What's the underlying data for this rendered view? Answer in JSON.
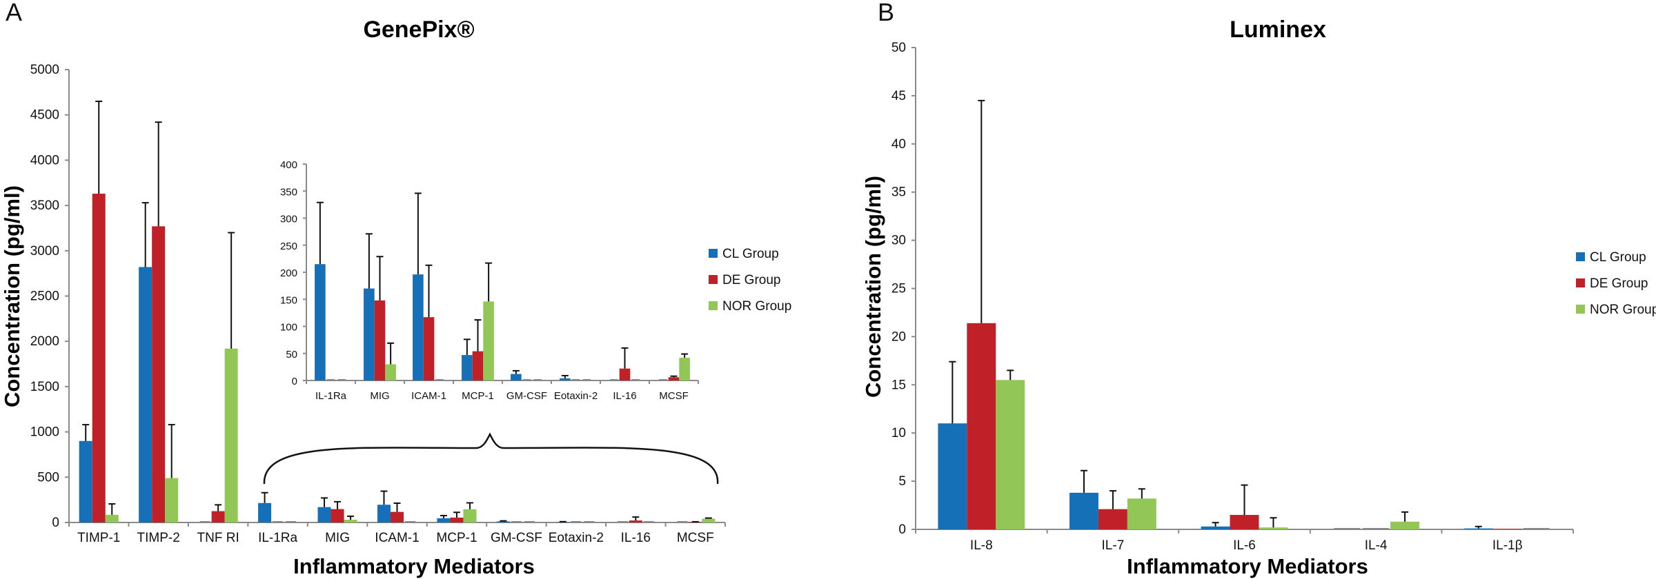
{
  "colors": {
    "CL": "#1670b8",
    "DE": "#c02129",
    "NOR": "#92c757"
  },
  "chart_data": [
    {
      "panel": "A",
      "type": "bar",
      "title": "GenePix®",
      "xlabel": "Inflammatory Mediators",
      "ylabel": "Concentration (pg/ml)",
      "ylim": [
        0,
        5000
      ],
      "yticks": [
        0,
        500,
        1000,
        1500,
        2000,
        2500,
        3000,
        3500,
        4000,
        4500,
        5000
      ],
      "legend_position": "right",
      "categories": [
        "TIMP-1",
        "TIMP-2",
        "TNF RI",
        "IL-1Ra",
        "MIG",
        "ICAM-1",
        "MCP-1",
        "GM-CSF",
        "Eotaxin-2",
        "IL-16",
        "MCSF"
      ],
      "series": [
        {
          "name": "CL Group",
          "key": "CL",
          "values": [
            900,
            2820,
            0,
            215,
            170,
            196,
            47,
            12,
            4,
            0,
            0
          ],
          "error_upper": [
            1080,
            3530,
            0,
            329,
            271,
            346,
            76,
            18,
            9,
            0,
            0
          ]
        },
        {
          "name": "DE Group",
          "key": "DE",
          "values": [
            3630,
            3270,
            125,
            0,
            148,
            117,
            54,
            0,
            0,
            22,
            6
          ],
          "error_upper": [
            4650,
            4420,
            195,
            0,
            229,
            213,
            112,
            0,
            0,
            60,
            8
          ]
        },
        {
          "name": "NOR Group",
          "key": "NOR",
          "values": [
            85,
            490,
            1920,
            0,
            30,
            0,
            146,
            0,
            0,
            0,
            42
          ],
          "error_upper": [
            205,
            1080,
            3200,
            0,
            69,
            0,
            217,
            0,
            0,
            0,
            49
          ]
        }
      ],
      "inset": {
        "type": "bar",
        "ylim": [
          0,
          400
        ],
        "yticks": [
          0,
          50,
          100,
          150,
          200,
          250,
          300,
          350,
          400
        ],
        "categories": [
          "IL-1Ra",
          "MIG",
          "ICAM-1",
          "MCP-1",
          "GM-CSF",
          "Eotaxin-2",
          "IL-16",
          "MCSF"
        ],
        "series": [
          {
            "name": "CL Group",
            "key": "CL",
            "values": [
              215,
              170,
              196,
              47,
              12,
              4,
              0,
              0
            ],
            "error_upper": [
              329,
              271,
              346,
              76,
              18,
              9,
              0,
              0
            ]
          },
          {
            "name": "DE Group",
            "key": "DE",
            "values": [
              0,
              148,
              117,
              54,
              0,
              0,
              22,
              6
            ],
            "error_upper": [
              0,
              229,
              213,
              112,
              0,
              0,
              60,
              8
            ]
          },
          {
            "name": "NOR Group",
            "key": "NOR",
            "values": [
              0,
              30,
              0,
              146,
              0,
              0,
              0,
              42
            ],
            "error_upper": [
              0,
              69,
              0,
              217,
              0,
              0,
              0,
              49
            ]
          }
        ]
      },
      "legend": [
        "CL Group",
        "DE Group",
        "NOR Group"
      ]
    },
    {
      "panel": "B",
      "type": "bar",
      "title": "Luminex",
      "xlabel": "Inflammatory Mediators",
      "ylabel": "Concentration (pg/ml)",
      "ylim": [
        0,
        50
      ],
      "yticks": [
        0,
        5,
        10,
        15,
        20,
        25,
        30,
        35,
        40,
        45,
        50
      ],
      "legend_position": "right",
      "categories": [
        "IL-8",
        "IL-7",
        "IL-6",
        "IL-4",
        "IL-1β"
      ],
      "series": [
        {
          "name": "CL Group",
          "key": "CL",
          "values": [
            11.0,
            3.8,
            0.3,
            0.0,
            0.1
          ],
          "error_upper": [
            17.4,
            6.1,
            0.7,
            0.0,
            0.3
          ]
        },
        {
          "name": "DE Group",
          "key": "DE",
          "values": [
            21.4,
            2.1,
            1.5,
            0.0,
            0.05
          ],
          "error_upper": [
            44.5,
            4.0,
            4.6,
            0.0,
            0.05
          ]
        },
        {
          "name": "NOR Group",
          "key": "NOR",
          "values": [
            15.5,
            3.2,
            0.2,
            0.8,
            0.0
          ],
          "error_upper": [
            16.5,
            4.2,
            1.2,
            1.8,
            0.0
          ]
        }
      ],
      "legend": [
        "CL Group",
        "DE Group",
        "NOR Group"
      ]
    }
  ]
}
